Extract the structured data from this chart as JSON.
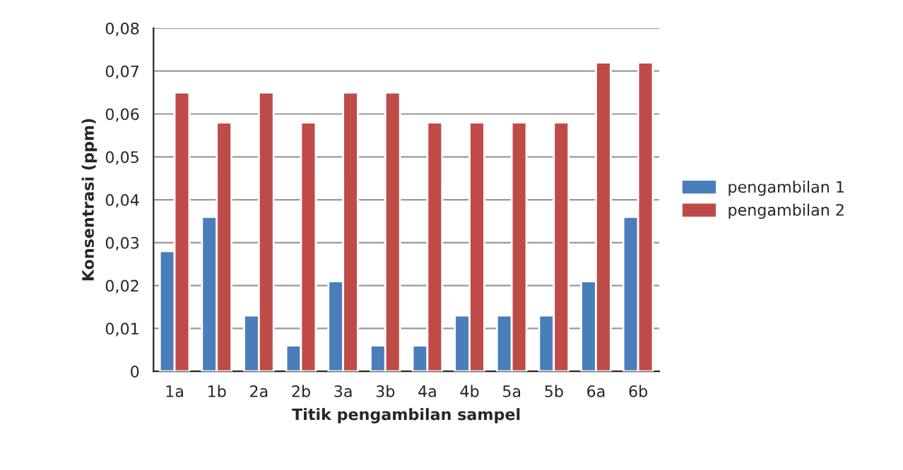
{
  "chart_data": {
    "type": "bar",
    "xlabel": "Titik pengambilan sampel",
    "ylabel": "Konsentrasi (ppm)",
    "categories": [
      "1a",
      "1b",
      "2a",
      "2b",
      "3a",
      "3b",
      "4a",
      "4b",
      "5a",
      "5b",
      "6a",
      "6b"
    ],
    "series": [
      {
        "name": "pengambilan 1",
        "color": "#4a7ebb",
        "values": [
          0.028,
          0.036,
          0.013,
          0.006,
          0.021,
          0.006,
          0.006,
          0.013,
          0.013,
          0.013,
          0.021,
          0.036
        ]
      },
      {
        "name": "pengambilan 2",
        "color": "#be4b48",
        "values": [
          0.065,
          0.058,
          0.065,
          0.058,
          0.065,
          0.065,
          0.058,
          0.058,
          0.058,
          0.058,
          0.072,
          0.072
        ]
      }
    ],
    "ylim": [
      0,
      0.08
    ],
    "yticks": [
      0,
      {
        "value": 0.01,
        "label": "0,01"
      },
      {
        "value": 0.02,
        "label": "0,02"
      },
      {
        "value": 0.03,
        "label": "0,03"
      },
      {
        "value": 0.04,
        "label": "0,04"
      },
      {
        "value": 0.05,
        "label": "0,05"
      },
      {
        "value": 0.06,
        "label": "0,06"
      },
      {
        "value": 0.07,
        "label": "0,07"
      },
      {
        "value": 0.08,
        "label": "0,08"
      }
    ],
    "grid": "y",
    "legend": "right"
  }
}
